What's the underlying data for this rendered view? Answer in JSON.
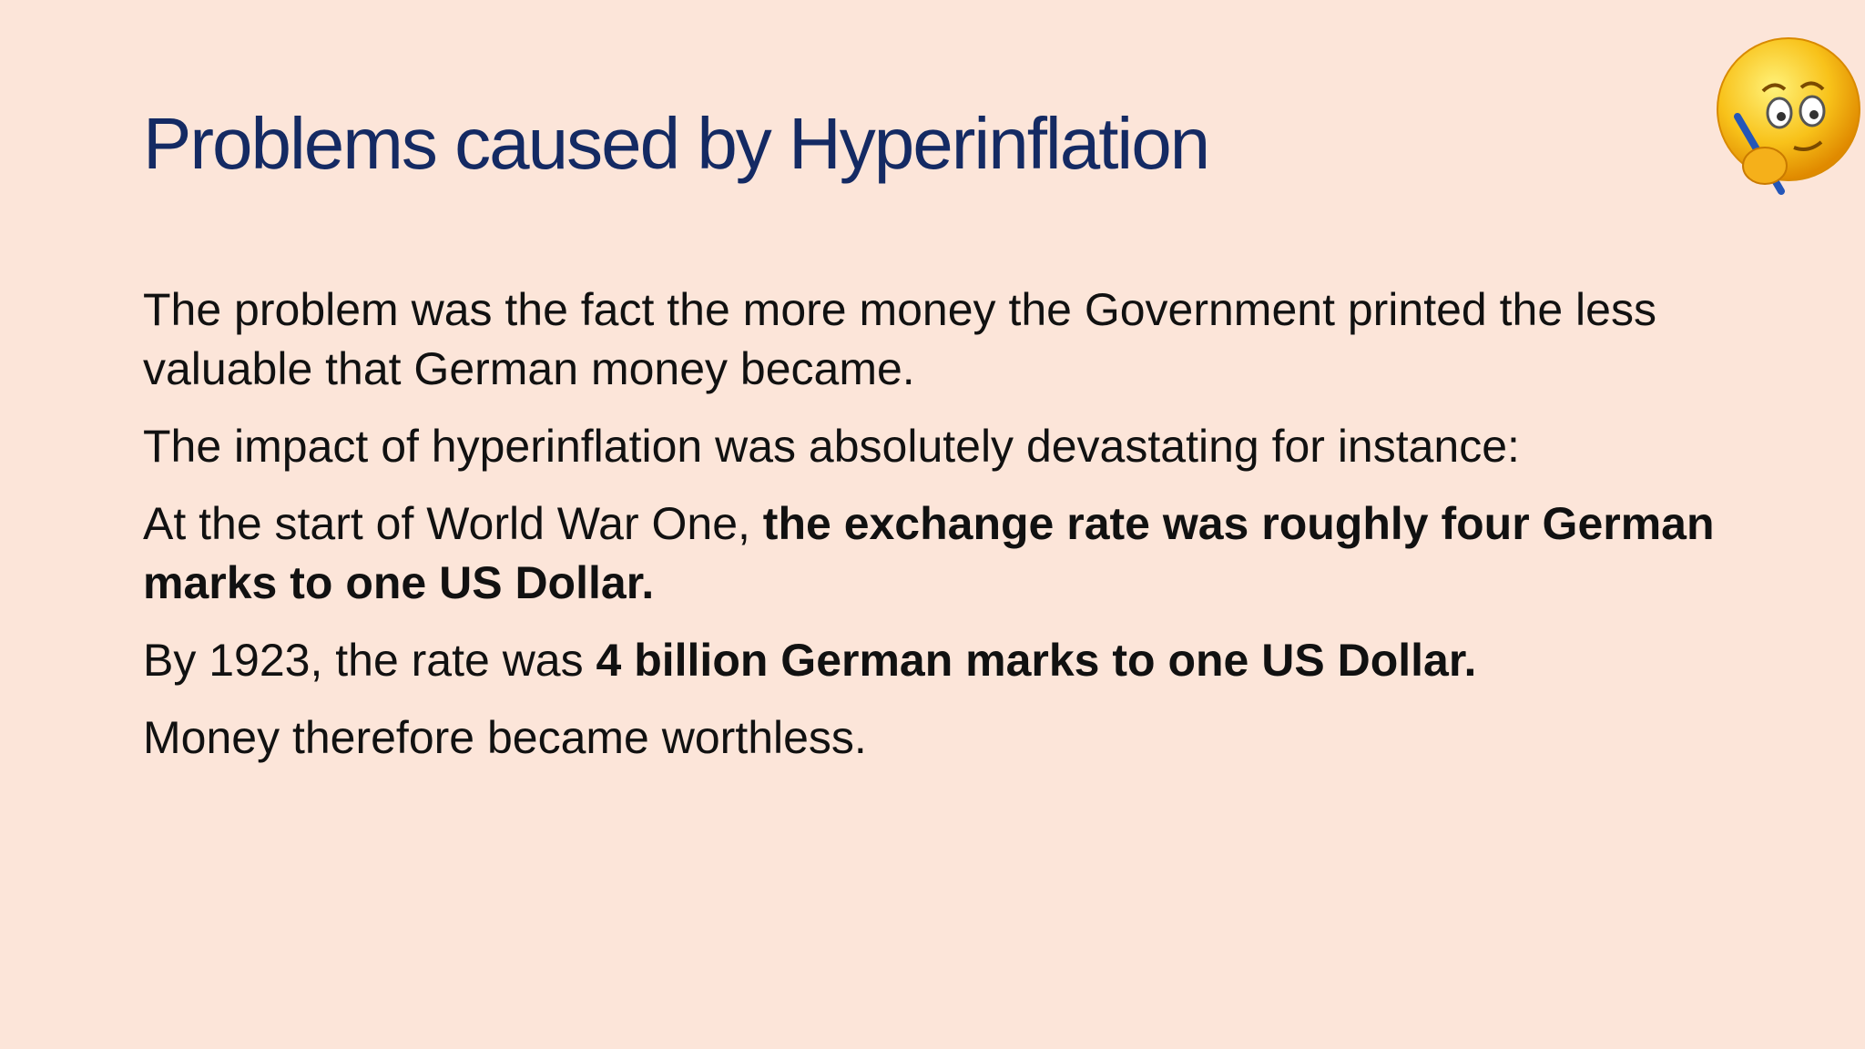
{
  "title": "Problems caused by Hyperinflation",
  "paragraphs": [
    {
      "runs": [
        {
          "text": "The problem was the fact the more money the Government printed the less valuable that German money became.",
          "bold": false
        }
      ]
    },
    {
      "runs": [
        {
          "text": "The impact of hyperinflation was absolutely devastating for instance:",
          "bold": false
        }
      ]
    },
    {
      "runs": [
        {
          "text": "At the start of World War One, ",
          "bold": false
        },
        {
          "text": "the exchange rate was roughly four German marks to one US Dollar.",
          "bold": true
        }
      ]
    },
    {
      "runs": [
        {
          "text": "By 1923, the rate was ",
          "bold": false
        },
        {
          "text": "4 billion German marks to one US Dollar.",
          "bold": true
        }
      ]
    },
    {
      "runs": [
        {
          "text": "Money therefore became worthless.",
          "bold": false
        }
      ]
    }
  ]
}
